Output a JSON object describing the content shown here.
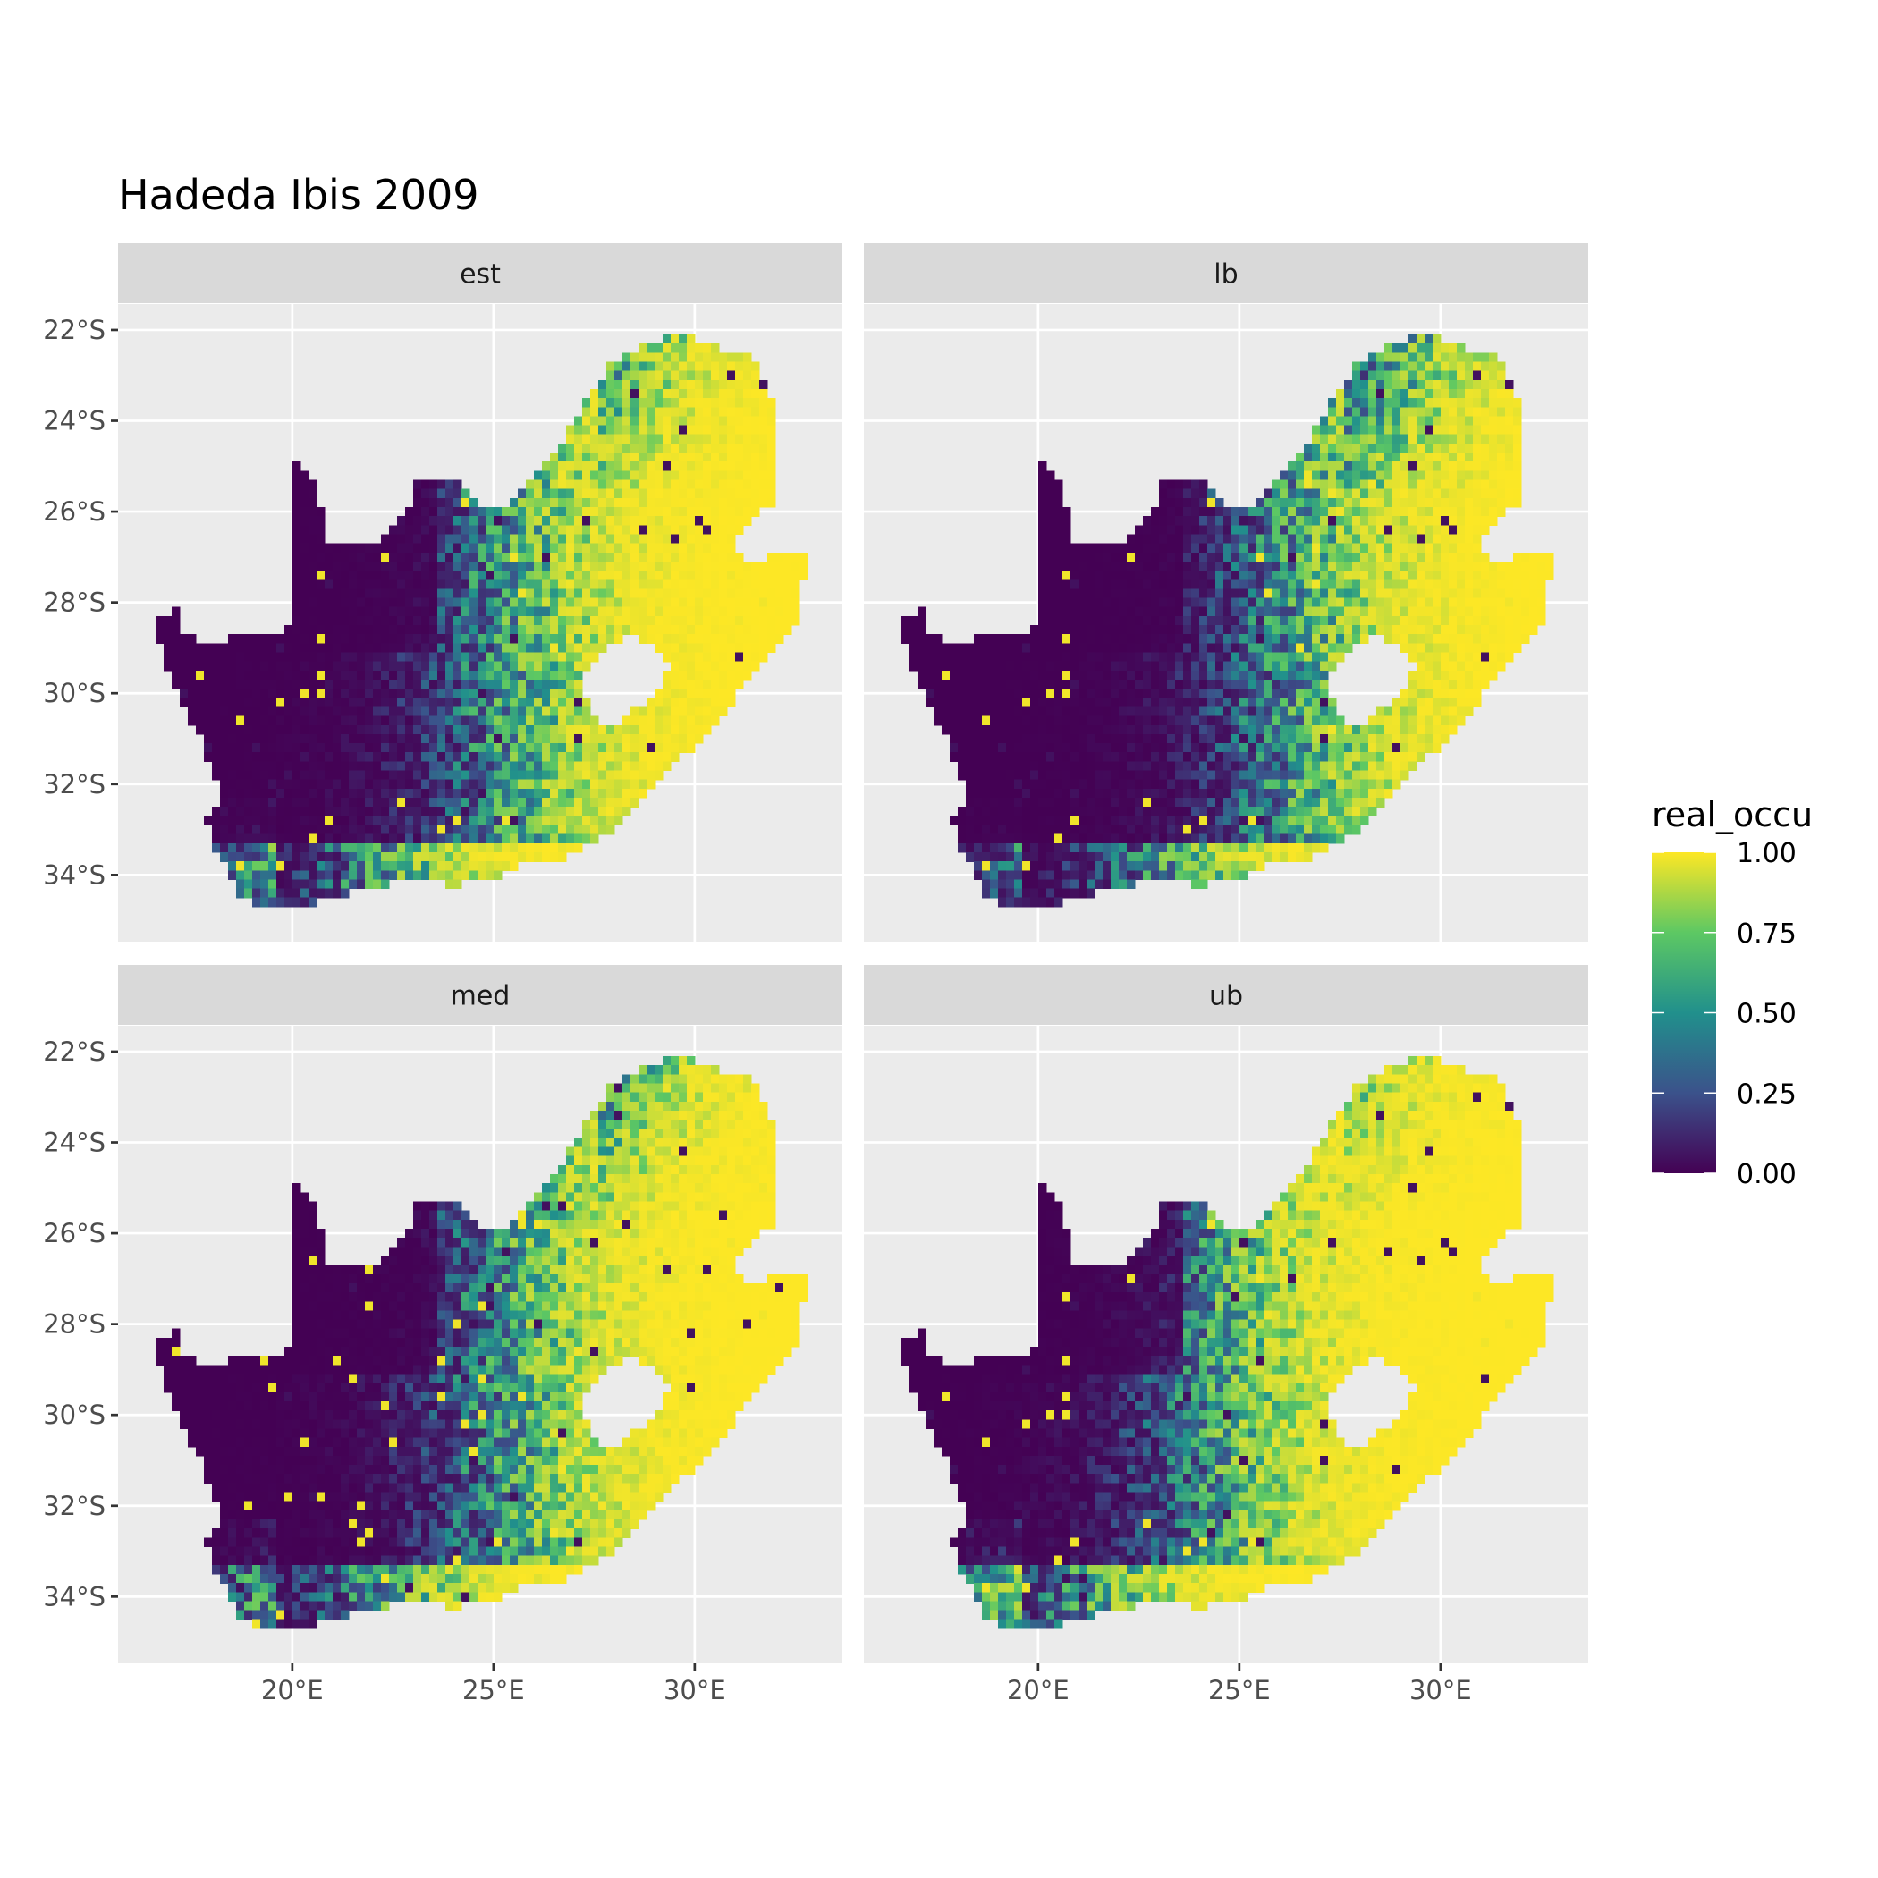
{
  "chart_data": {
    "type": "heatmap",
    "title": "Hadeda Ibis 2009",
    "facets": [
      "est",
      "lb",
      "med",
      "ub"
    ],
    "x_ticks": [
      {
        "value": 20,
        "label": "20°E"
      },
      {
        "value": 25,
        "label": "25°E"
      },
      {
        "value": 30,
        "label": "30°E"
      }
    ],
    "y_ticks": [
      {
        "value": -22,
        "label": "22°S"
      },
      {
        "value": -24,
        "label": "24°S"
      },
      {
        "value": -26,
        "label": "26°S"
      },
      {
        "value": -28,
        "label": "28°S"
      },
      {
        "value": -30,
        "label": "30°S"
      },
      {
        "value": -32,
        "label": "32°S"
      },
      {
        "value": -34,
        "label": "34°S"
      }
    ],
    "xlim": [
      15.67,
      33.67
    ],
    "ylim": [
      -35.47,
      -21.43
    ],
    "grid": true,
    "legend": {
      "title": "real_occu",
      "placement": "right",
      "palette": "viridis",
      "colors": [
        "#440154",
        "#3B528B",
        "#21908C",
        "#5DC863",
        "#FDE725"
      ],
      "range": [
        0,
        1
      ],
      "breaks": [
        {
          "value": 0,
          "label": "0.00"
        },
        {
          "value": 0.25,
          "label": "0.25"
        },
        {
          "value": 0.5,
          "label": "0.50"
        },
        {
          "value": 0.75,
          "label": "0.75"
        },
        {
          "value": 1,
          "label": "1.00"
        }
      ]
    },
    "region_outline_lonlat": [
      [
        16.56,
        -28.52
      ],
      [
        17.07,
        -28.07
      ],
      [
        17.37,
        -28.78
      ],
      [
        18.11,
        -28.83
      ],
      [
        19.76,
        -28.65
      ],
      [
        20,
        -28.52
      ],
      [
        20,
        -24.73
      ],
      [
        20.57,
        -25.34
      ],
      [
        20.81,
        -26.4
      ],
      [
        20.75,
        -26.79
      ],
      [
        21.71,
        -26.79
      ],
      [
        22.31,
        -26.53
      ],
      [
        22.9,
        -25.87
      ],
      [
        23.05,
        -25.28
      ],
      [
        24.1,
        -25.34
      ],
      [
        24.55,
        -25.74
      ],
      [
        24.85,
        -26.0
      ],
      [
        25.3,
        -25.87
      ],
      [
        25.75,
        -25.47
      ],
      [
        26.5,
        -24.68
      ],
      [
        27.1,
        -23.88
      ],
      [
        27.54,
        -23.22
      ],
      [
        27.99,
        -22.69
      ],
      [
        29.04,
        -22.21
      ],
      [
        29.79,
        -22.16
      ],
      [
        30.69,
        -22.42
      ],
      [
        31.44,
        -22.48
      ],
      [
        31.89,
        -23.48
      ],
      [
        32.04,
        -24.28
      ],
      [
        32.04,
        -25.87
      ],
      [
        31.65,
        -25.87
      ],
      [
        31.14,
        -26.4
      ],
      [
        30.99,
        -26.93
      ],
      [
        31.44,
        -27.19
      ],
      [
        31.89,
        -26.98
      ],
      [
        32.34,
        -26.87
      ],
      [
        32.84,
        -26.87
      ],
      [
        32.63,
        -27.72
      ],
      [
        32.49,
        -28.52
      ],
      [
        31.89,
        -29.18
      ],
      [
        30.99,
        -30.11
      ],
      [
        30.39,
        -30.77
      ],
      [
        29.79,
        -31.3
      ],
      [
        28.89,
        -32.09
      ],
      [
        27.99,
        -33.02
      ],
      [
        26.8,
        -33.6
      ],
      [
        25.6,
        -33.81
      ],
      [
        25.0,
        -34.08
      ],
      [
        24.1,
        -34.21
      ],
      [
        22.6,
        -34.16
      ],
      [
        21.71,
        -34.34
      ],
      [
        20.51,
        -34.61
      ],
      [
        19.61,
        -34.82
      ],
      [
        18.71,
        -34.48
      ],
      [
        18.41,
        -33.95
      ],
      [
        17.96,
        -33.28
      ],
      [
        17.87,
        -32.75
      ],
      [
        18.26,
        -32.36
      ],
      [
        17.81,
        -31.17
      ],
      [
        17.37,
        -30.37
      ],
      [
        16.93,
        -29.58
      ]
    ],
    "hole_outline_lonlat": [
      [
        27.1,
        -29.71
      ],
      [
        27.69,
        -29.05
      ],
      [
        28.29,
        -28.73
      ],
      [
        29.04,
        -28.91
      ],
      [
        29.34,
        -29.44
      ],
      [
        29.04,
        -30.11
      ],
      [
        28.44,
        -30.37
      ],
      [
        27.99,
        -30.72
      ],
      [
        27.54,
        -30.64
      ],
      [
        27.34,
        -30.11
      ]
    ],
    "colors": {
      "panel_bg": "#EBEBEB",
      "strip_bg": "#D9D9D9",
      "grid": "#FFFFFF"
    }
  }
}
